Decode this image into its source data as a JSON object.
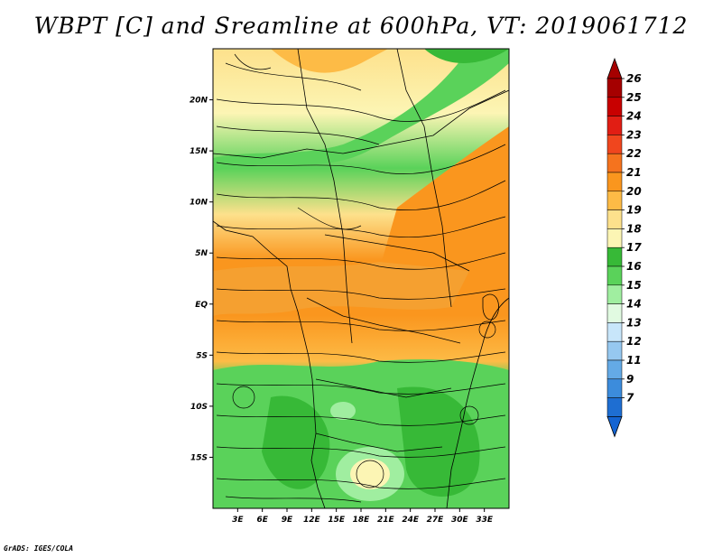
{
  "title": "WBPT [C] and Sreamline at 600hPa, VT: 2019061712",
  "credit": "GrADS: IGES/COLA",
  "map": {
    "lon_range": [
      0,
      36
    ],
    "lat_range": [
      -20,
      25
    ],
    "lat_ticks": [
      {
        "value": 20,
        "label": "20N"
      },
      {
        "value": 15,
        "label": "15N"
      },
      {
        "value": 10,
        "label": "10N"
      },
      {
        "value": 5,
        "label": "5N"
      },
      {
        "value": 0,
        "label": "EQ"
      },
      {
        "value": -5,
        "label": "5S"
      },
      {
        "value": -10,
        "label": "10S"
      },
      {
        "value": -15,
        "label": "15S"
      }
    ],
    "lon_ticks": [
      {
        "value": 3,
        "label": "3E"
      },
      {
        "value": 6,
        "label": "6E"
      },
      {
        "value": 9,
        "label": "9E"
      },
      {
        "value": 12,
        "label": "12E"
      },
      {
        "value": 15,
        "label": "15E"
      },
      {
        "value": 18,
        "label": "18E"
      },
      {
        "value": 21,
        "label": "21E"
      },
      {
        "value": 24,
        "label": "24E"
      },
      {
        "value": 27,
        "label": "27E"
      },
      {
        "value": 30,
        "label": "30E"
      },
      {
        "value": 33,
        "label": "33E"
      }
    ]
  },
  "colorbar": {
    "labels": [
      "26",
      "25",
      "24",
      "23",
      "22",
      "21",
      "20",
      "19",
      "18",
      "17",
      "16",
      "15",
      "14",
      "13",
      "12",
      "11",
      "9",
      "7"
    ],
    "colors": [
      "#a50000",
      "#c80000",
      "#e11e14",
      "#f0461e",
      "#f5731e",
      "#fa961e",
      "#fdbb46",
      "#fde18c",
      "#fcf5b4",
      "#37b937",
      "#5ad25a",
      "#a0eea0",
      "#e1fae1",
      "#c8e6fa",
      "#96c8f0",
      "#64aae6",
      "#3c8cdc",
      "#1e6ed2"
    ],
    "top_arrow_color": "#a50000",
    "bottom_arrow_color": "#1464d2"
  }
}
